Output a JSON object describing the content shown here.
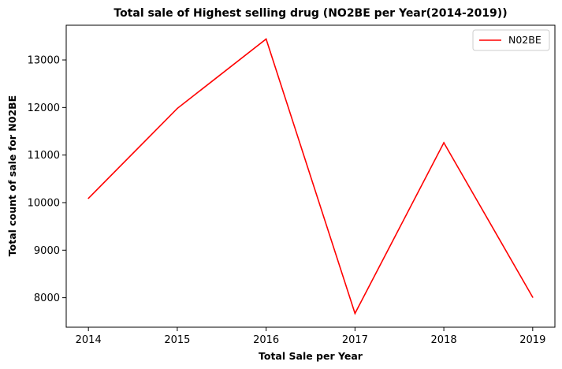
{
  "chart_data": {
    "type": "line",
    "title": "Total sale of Highest selling drug (NO2BE per Year(2014-2019))",
    "xlabel": "Total Sale per Year",
    "ylabel": "Total count of sale for N02BE",
    "x": [
      2014,
      2015,
      2016,
      2017,
      2018,
      2019
    ],
    "series": [
      {
        "name": "N02BE",
        "color": "#ff0000",
        "values": [
          10090,
          11980,
          13440,
          7670,
          11260,
          8010
        ]
      }
    ],
    "xticks": [
      "2014",
      "2015",
      "2016",
      "2017",
      "2018",
      "2019"
    ],
    "yticks": [
      8000,
      9000,
      10000,
      11000,
      12000,
      13000
    ],
    "xlim": [
      2013.75,
      2019.25
    ],
    "ylim": [
      7380,
      13730
    ],
    "grid": false,
    "legend_position": "top-right"
  }
}
